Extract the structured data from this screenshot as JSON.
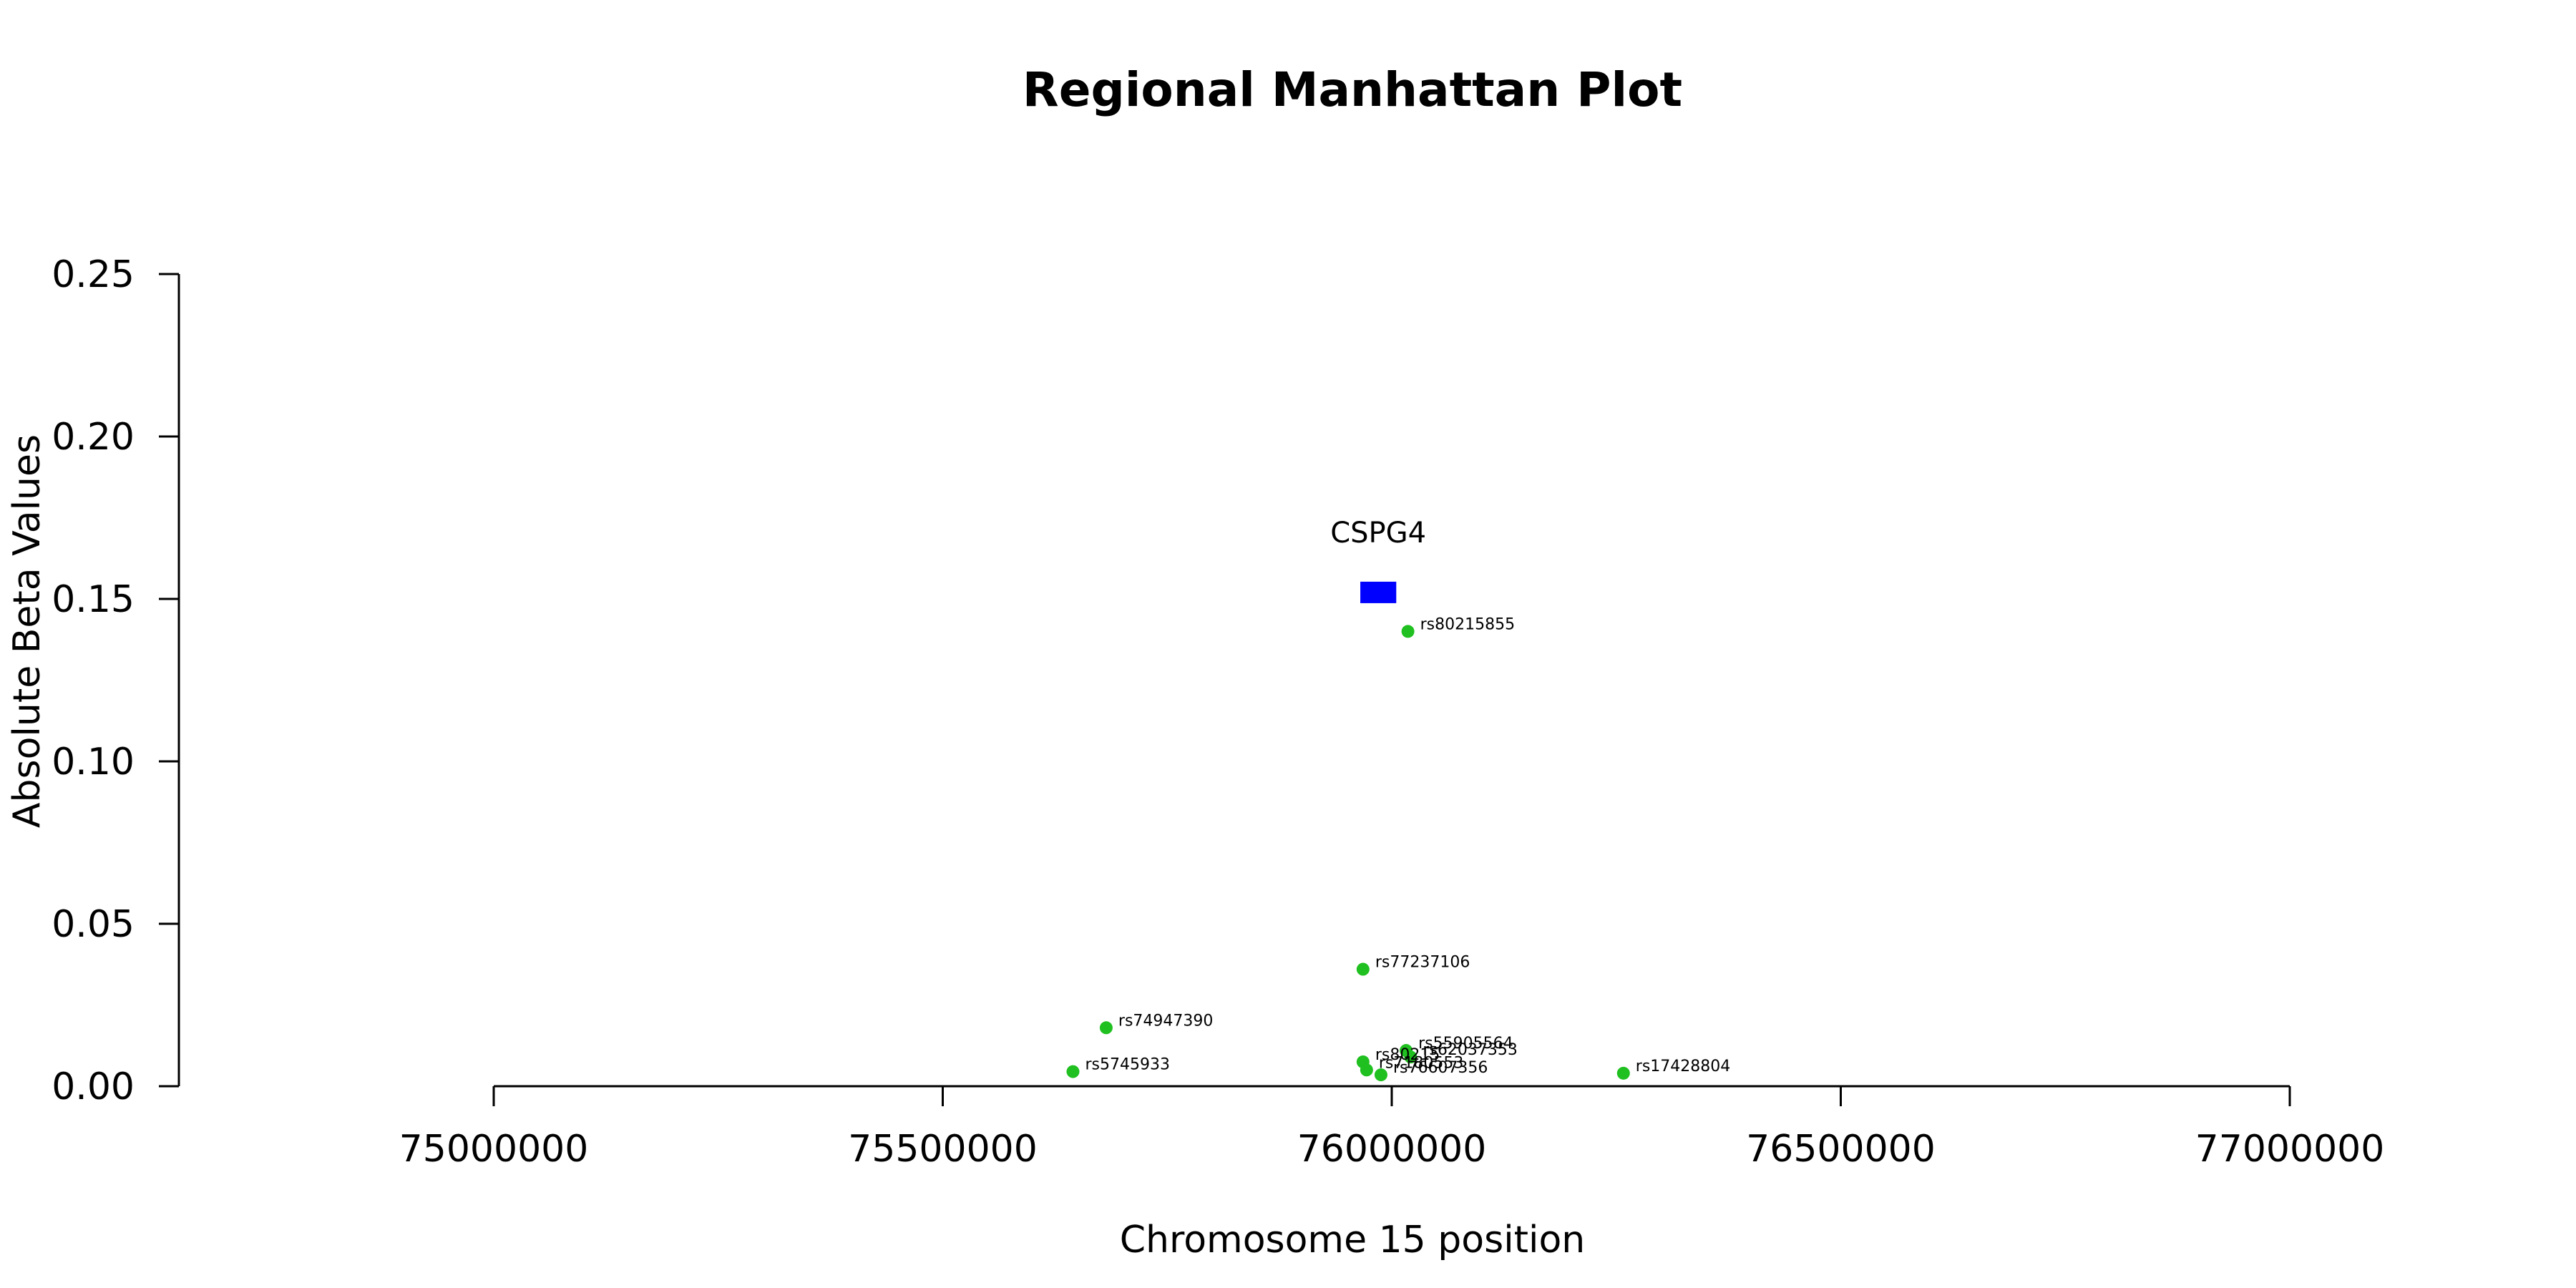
{
  "chart_data": {
    "type": "scatter",
    "title": "Regional Manhattan Plot",
    "xlabel": "Chromosome 15 position",
    "ylabel": "Absolute Beta Values",
    "xlim": [
      74645000,
      77355000
    ],
    "ylim": [
      0,
      0.25
    ],
    "xticks": [
      75000000,
      75500000,
      76000000,
      76500000,
      77000000
    ],
    "xtick_labels": [
      "75000000",
      "75500000",
      "76000000",
      "76500000",
      "77000000"
    ],
    "yticks": [
      0.0,
      0.05,
      0.1,
      0.15,
      0.2,
      0.25
    ],
    "ytick_labels": [
      "0.00",
      "0.05",
      "0.10",
      "0.15",
      "0.20",
      "0.25"
    ],
    "grid": false,
    "point_color": "#1fc01f",
    "gene_color": "#0000ff",
    "genes": [
      {
        "name": "CSPG4",
        "start": 75965000,
        "end": 76005000,
        "beta": 0.152
      }
    ],
    "points": [
      {
        "snp": "rs80215855",
        "pos": 76018000,
        "beta": 0.14
      },
      {
        "snp": "rs77237106",
        "pos": 75968000,
        "beta": 0.036
      },
      {
        "snp": "rs74947390",
        "pos": 75682000,
        "beta": 0.018
      },
      {
        "snp": "rs55905564",
        "pos": 76016000,
        "beta": 0.011
      },
      {
        "snp": "rs62037353",
        "pos": 76021000,
        "beta": 0.009
      },
      {
        "snp": "rs80215",
        "pos": 75968000,
        "beta": 0.0075
      },
      {
        "snp": "rs7180553",
        "pos": 75972000,
        "beta": 0.005
      },
      {
        "snp": "rs76607356",
        "pos": 75988000,
        "beta": 0.0035
      },
      {
        "snp": "rs5745933",
        "pos": 75645000,
        "beta": 0.0045
      },
      {
        "snp": "rs17428804",
        "pos": 76258000,
        "beta": 0.004
      }
    ]
  }
}
